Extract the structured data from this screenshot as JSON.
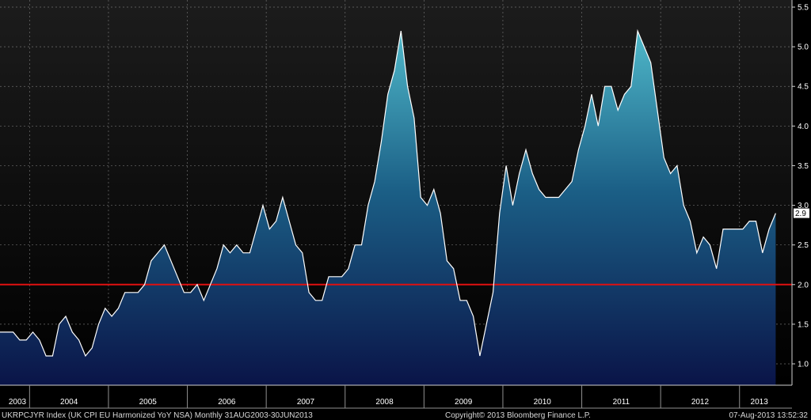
{
  "chart_data": {
    "type": "area",
    "title": "",
    "xlabel": "",
    "ylabel": "",
    "ylim": [
      0.75,
      5.6
    ],
    "grid": true,
    "x_start": "2003-08",
    "x_end": "2013-06",
    "x_tick_labels": [
      "2003",
      "2004",
      "2005",
      "2006",
      "2007",
      "2008",
      "2009",
      "2010",
      "2011",
      "2012",
      "2013"
    ],
    "y_ticks": [
      1.0,
      1.5,
      2.0,
      2.5,
      3.0,
      3.5,
      4.0,
      4.5,
      5.0,
      5.5
    ],
    "y_tick_labels": [
      "1.0",
      "1.5",
      "2.0",
      "2.5",
      "3.0",
      "3.5",
      "4.0",
      "4.5",
      "5.0",
      "5.5"
    ],
    "reference_line": {
      "value": 2.0,
      "color": "#e01010"
    },
    "last_value_label": "2.9",
    "colors": {
      "background_top": "#1c1c1c",
      "background_bottom": "#000000",
      "line": "#ffffff",
      "fill_top": "#4fb8c9",
      "fill_bottom": "#0a1448",
      "grid": "#6e6e6e",
      "last_badge": "#ffffff"
    },
    "series": [
      {
        "values": [
          1.4,
          1.4,
          1.4,
          1.3,
          1.3,
          1.4,
          1.3,
          1.1,
          1.1,
          1.5,
          1.6,
          1.4,
          1.3,
          1.1,
          1.2,
          1.5,
          1.7,
          1.6,
          1.7,
          1.9,
          1.9,
          1.9,
          2.0,
          2.3,
          2.4,
          2.5,
          2.3,
          2.1,
          1.9,
          1.9,
          2.0,
          1.8,
          2.0,
          2.2,
          2.5,
          2.4,
          2.5,
          2.4,
          2.4,
          2.7,
          3.0,
          2.7,
          2.8,
          3.1,
          2.8,
          2.5,
          2.4,
          1.9,
          1.8,
          1.8,
          2.1,
          2.1,
          2.1,
          2.2,
          2.5,
          2.5,
          3.0,
          3.3,
          3.8,
          4.4,
          4.7,
          5.2,
          4.5,
          4.1,
          3.1,
          3.0,
          3.2,
          2.9,
          2.3,
          2.2,
          1.8,
          1.8,
          1.6,
          1.1,
          1.5,
          1.9,
          2.9,
          3.5,
          3.0,
          3.4,
          3.7,
          3.4,
          3.2,
          3.1,
          3.1,
          3.1,
          3.2,
          3.3,
          3.7,
          4.0,
          4.4,
          4.0,
          4.5,
          4.5,
          4.2,
          4.4,
          4.5,
          5.2,
          5.0,
          4.8,
          4.2,
          3.6,
          3.4,
          3.5,
          3.0,
          2.8,
          2.4,
          2.6,
          2.5,
          2.2,
          2.7,
          2.7,
          2.7,
          2.7,
          2.8,
          2.8,
          2.4,
          2.7,
          2.9
        ]
      }
    ]
  },
  "footer": {
    "left": "UKRPCJYR Index (UK CPI EU Harmonized YoY NSA) Monthly 31AUG2003-30JUN2013",
    "center": "Copyright© 2013 Bloomberg Finance L.P.",
    "right": "07-Aug-2013 13:52:32"
  }
}
